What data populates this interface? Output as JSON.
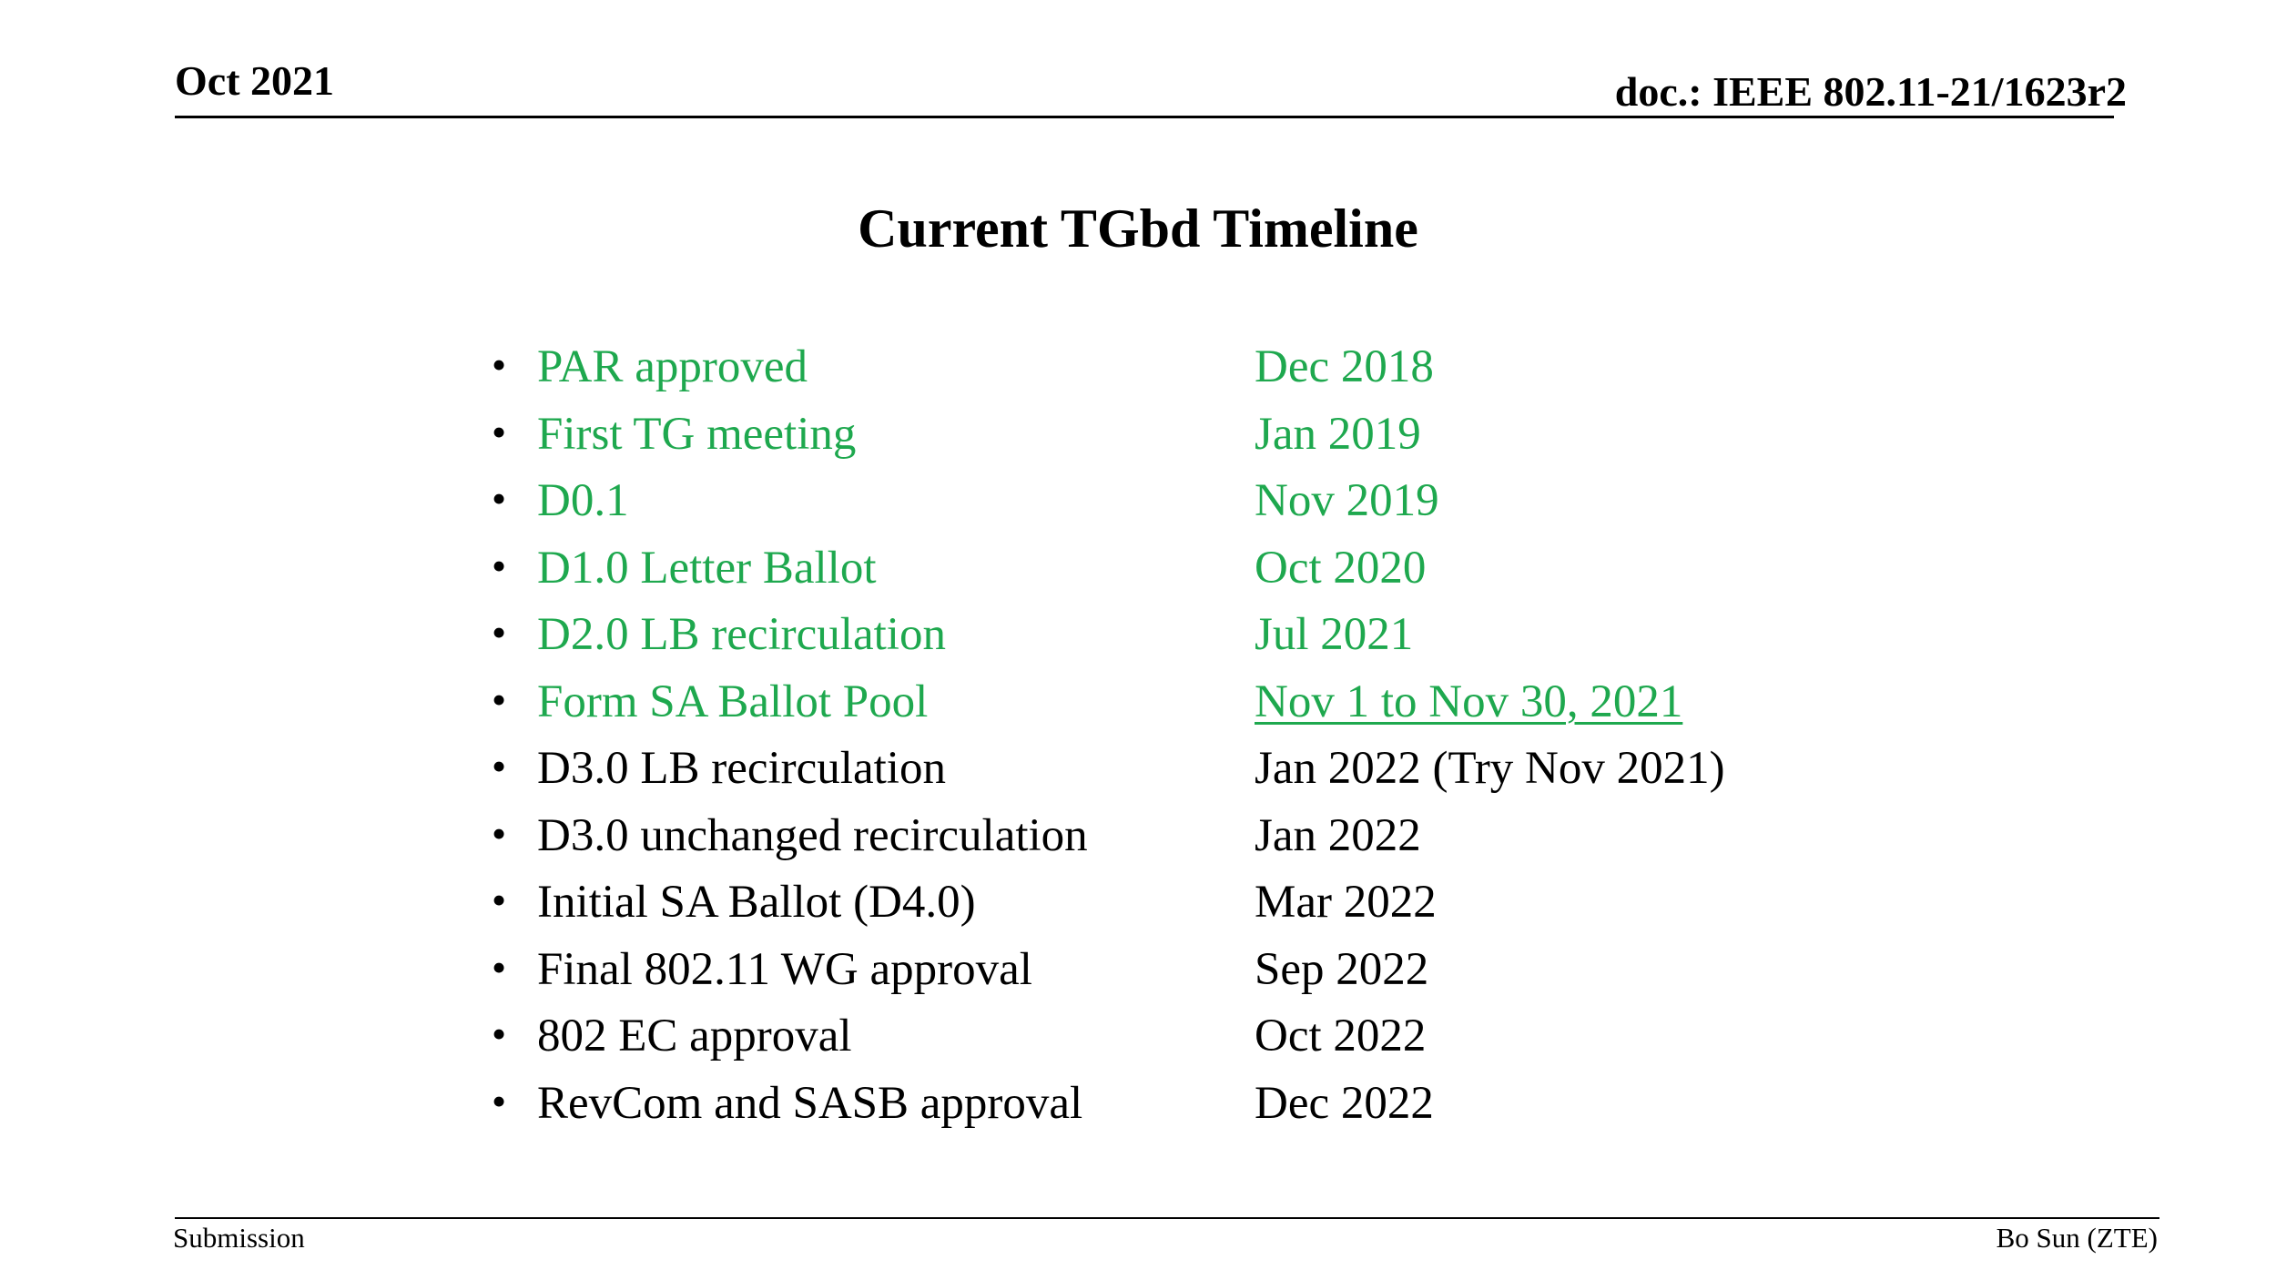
{
  "header": {
    "date": "Oct 2021",
    "doc_id": "doc.: IEEE 802.11-21/1623r2"
  },
  "title": "Current  TGbd Timeline",
  "bullet_glyph": "•",
  "colors": {
    "completed": "#1ea84e",
    "pending": "#000000"
  },
  "timeline": [
    {
      "milestone": "PAR approved",
      "date": "Dec 2018",
      "status": "completed"
    },
    {
      "milestone": "First TG meeting",
      "date": "Jan 2019",
      "status": "completed"
    },
    {
      "milestone": "D0.1",
      "date": "Nov 2019",
      "status": "completed"
    },
    {
      "milestone": "D1.0 Letter Ballot",
      "date": "Oct 2020",
      "status": "completed"
    },
    {
      "milestone": "D2.0 LB recirculation",
      "date": "Jul 2021",
      "status": "completed"
    },
    {
      "milestone": "Form SA Ballot Pool",
      "date": "Nov 1 to Nov 30, 2021",
      "status": "completed",
      "underlined": true
    },
    {
      "milestone": "D3.0 LB recirculation",
      "date": "Jan 2022 (Try Nov 2021)",
      "status": "pending"
    },
    {
      "milestone": "D3.0 unchanged recirculation",
      "date": "Jan 2022",
      "status": "pending"
    },
    {
      "milestone": "Initial SA Ballot (D4.0)",
      "date": "Mar 2022",
      "status": "pending"
    },
    {
      "milestone": "Final 802.11  WG approval",
      "date": "Sep 2022",
      "status": "pending"
    },
    {
      "milestone": "802 EC approval",
      "date": "Oct 2022",
      "status": "pending"
    },
    {
      "milestone": "RevCom and SASB approval",
      "date": "Dec 2022",
      "status": "pending"
    }
  ],
  "footer": {
    "left": "Submission",
    "right": "Bo Sun (ZTE)"
  }
}
